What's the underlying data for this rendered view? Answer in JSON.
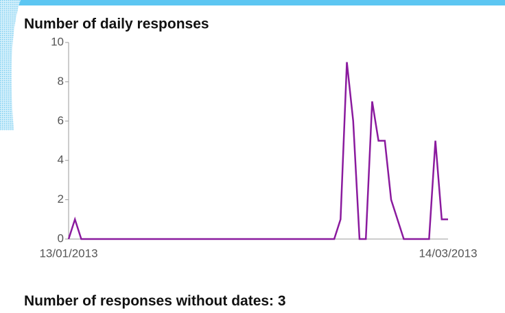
{
  "chart_data": {
    "type": "line",
    "title": "Number of daily responses",
    "x": [
      "13/01/2013",
      "14/01/2013",
      "15/01/2013",
      "16/01/2013",
      "17/01/2013",
      "18/01/2013",
      "19/01/2013",
      "20/01/2013",
      "21/01/2013",
      "22/01/2013",
      "23/01/2013",
      "24/01/2013",
      "25/01/2013",
      "26/01/2013",
      "27/01/2013",
      "28/01/2013",
      "29/01/2013",
      "30/01/2013",
      "31/01/2013",
      "01/02/2013",
      "02/02/2013",
      "03/02/2013",
      "04/02/2013",
      "05/02/2013",
      "06/02/2013",
      "07/02/2013",
      "08/02/2013",
      "09/02/2013",
      "10/02/2013",
      "11/02/2013",
      "12/02/2013",
      "13/02/2013",
      "14/02/2013",
      "15/02/2013",
      "16/02/2013",
      "17/02/2013",
      "18/02/2013",
      "19/02/2013",
      "20/02/2013",
      "21/02/2013",
      "22/02/2013",
      "23/02/2013",
      "24/02/2013",
      "25/02/2013",
      "26/02/2013",
      "27/02/2013",
      "28/02/2013",
      "01/03/2013",
      "02/03/2013",
      "03/03/2013",
      "04/03/2013",
      "05/03/2013",
      "06/03/2013",
      "07/03/2013",
      "08/03/2013",
      "09/03/2013",
      "10/03/2013",
      "11/03/2013",
      "12/03/2013",
      "13/03/2013",
      "14/03/2013"
    ],
    "series": [
      {
        "color": "#8a1a9e",
        "values": [
          0,
          1,
          0,
          0,
          0,
          0,
          0,
          0,
          0,
          0,
          0,
          0,
          0,
          0,
          0,
          0,
          0,
          0,
          0,
          0,
          0,
          0,
          0,
          0,
          0,
          0,
          0,
          0,
          0,
          0,
          0,
          0,
          0,
          0,
          0,
          0,
          0,
          0,
          0,
          0,
          0,
          0,
          0,
          1,
          9,
          6,
          0,
          0,
          7,
          5,
          5,
          2,
          1,
          0,
          0,
          0,
          0,
          0,
          5,
          1,
          1
        ]
      }
    ],
    "ylim": [
      0,
      10
    ],
    "yticks": [
      0,
      2,
      4,
      6,
      8,
      10
    ],
    "xticks": [
      "13/01/2013",
      "14/03/2013"
    ]
  },
  "footer": {
    "label": "Number of responses without dates:",
    "value": 3
  }
}
